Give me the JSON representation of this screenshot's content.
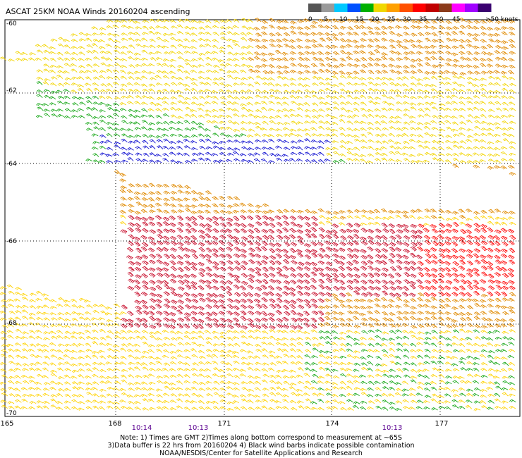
{
  "title": "ASCAT 25KM NOAA Winds 20160204 ascending",
  "legend": {
    "unit": "knots",
    "colors": [
      "#555555",
      "#9a9a9a",
      "#00c8ff",
      "#0050ff",
      "#00b000",
      "#f0d800",
      "#ffa000",
      "#ff5000",
      "#ff0000",
      "#c00000",
      "#8b3a1a",
      "#ff00ff",
      "#a000ff",
      "#3a0070"
    ],
    "labels": [
      "0",
      "5",
      "10",
      "15",
      "20",
      "25",
      "30",
      "35",
      "40",
      "45",
      ">50 knots"
    ]
  },
  "axes": {
    "lon_ticks": [
      "165",
      "168",
      "171",
      "174",
      "177"
    ],
    "lat_ticks": [
      "-60",
      "-62",
      "-64",
      "-66",
      "-68",
      "-70"
    ]
  },
  "pass_times": [
    "10:14",
    "10:13",
    "10:13"
  ],
  "notes": {
    "line1": "Note: 1) Times are GMT  2)Times along bottom correspond to measurement at ~65S",
    "line2": "3)Data buffer is 22 hrs from 20160204  4) Black wind barbs indicate possible contamination",
    "line3": "NOAA/NESDIS/Center for Satellite Applications and Research"
  },
  "wind_color_key": {
    "light_yellow": "#f2d400",
    "yellow": "#ffd200",
    "orange": "#e08a00",
    "dark_orange": "#c86400",
    "green": "#1aa81a",
    "blue": "#1010d0",
    "red": "#c8102e",
    "bright_red": "#ff1010"
  }
}
